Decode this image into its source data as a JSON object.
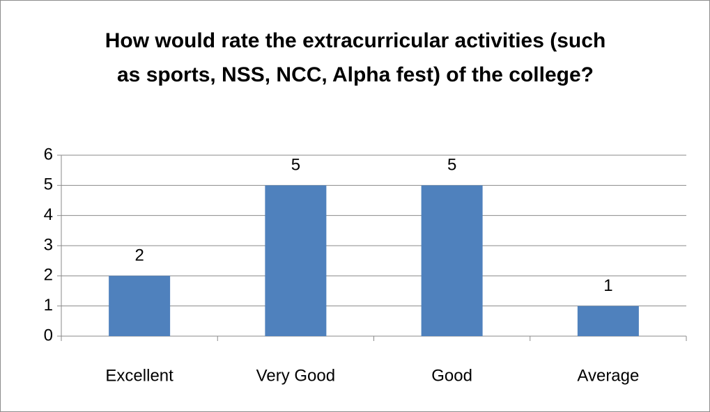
{
  "chart_data": {
    "type": "bar",
    "title": "How would rate the extracurricular activities (such as sports, NSS, NCC, Alpha fest) of the college?",
    "categories": [
      "Excellent",
      "Very Good",
      "Good",
      "Average"
    ],
    "values": [
      2,
      5,
      5,
      1
    ],
    "color": "#4f81bd",
    "ylim": [
      0,
      6
    ],
    "yticks": [
      0,
      1,
      2,
      3,
      4,
      5,
      6
    ],
    "grid": true
  }
}
